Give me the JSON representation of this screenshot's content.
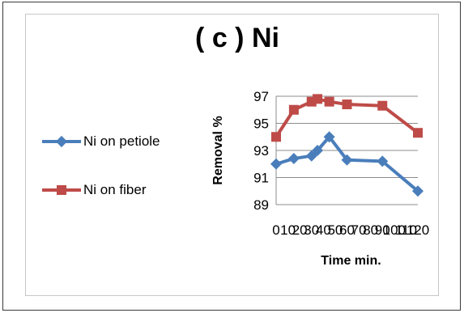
{
  "chart_data": {
    "type": "line",
    "title": "( c ) Ni",
    "xlabel": "Time min.",
    "ylabel": "Removal %",
    "x": [
      0,
      10,
      20,
      30,
      40,
      50,
      60,
      70,
      80,
      90,
      100,
      110,
      120
    ],
    "x_tick_labels": [
      "0",
      "10",
      "20",
      "30",
      "40",
      "50",
      "60",
      "70",
      "80",
      "90",
      "100",
      "110",
      "120"
    ],
    "ylim": [
      89,
      97
    ],
    "yticks": [
      89,
      91,
      93,
      95,
      97
    ],
    "grid": true,
    "legend_position": "left",
    "series": [
      {
        "name": "Ni on petiole",
        "color": "#4a7ebb",
        "marker": "diamond",
        "x": [
          0,
          15,
          30,
          35,
          45,
          60,
          90,
          120
        ],
        "values": [
          92.0,
          92.4,
          92.6,
          93.0,
          94.0,
          92.3,
          92.2,
          90.0
        ]
      },
      {
        "name": "Ni on fiber",
        "color": "#be4b48",
        "marker": "square",
        "x": [
          0,
          15,
          30,
          35,
          45,
          60,
          90,
          120
        ],
        "values": [
          94.0,
          96.0,
          96.6,
          96.8,
          96.6,
          96.4,
          96.3,
          94.3
        ]
      }
    ]
  }
}
